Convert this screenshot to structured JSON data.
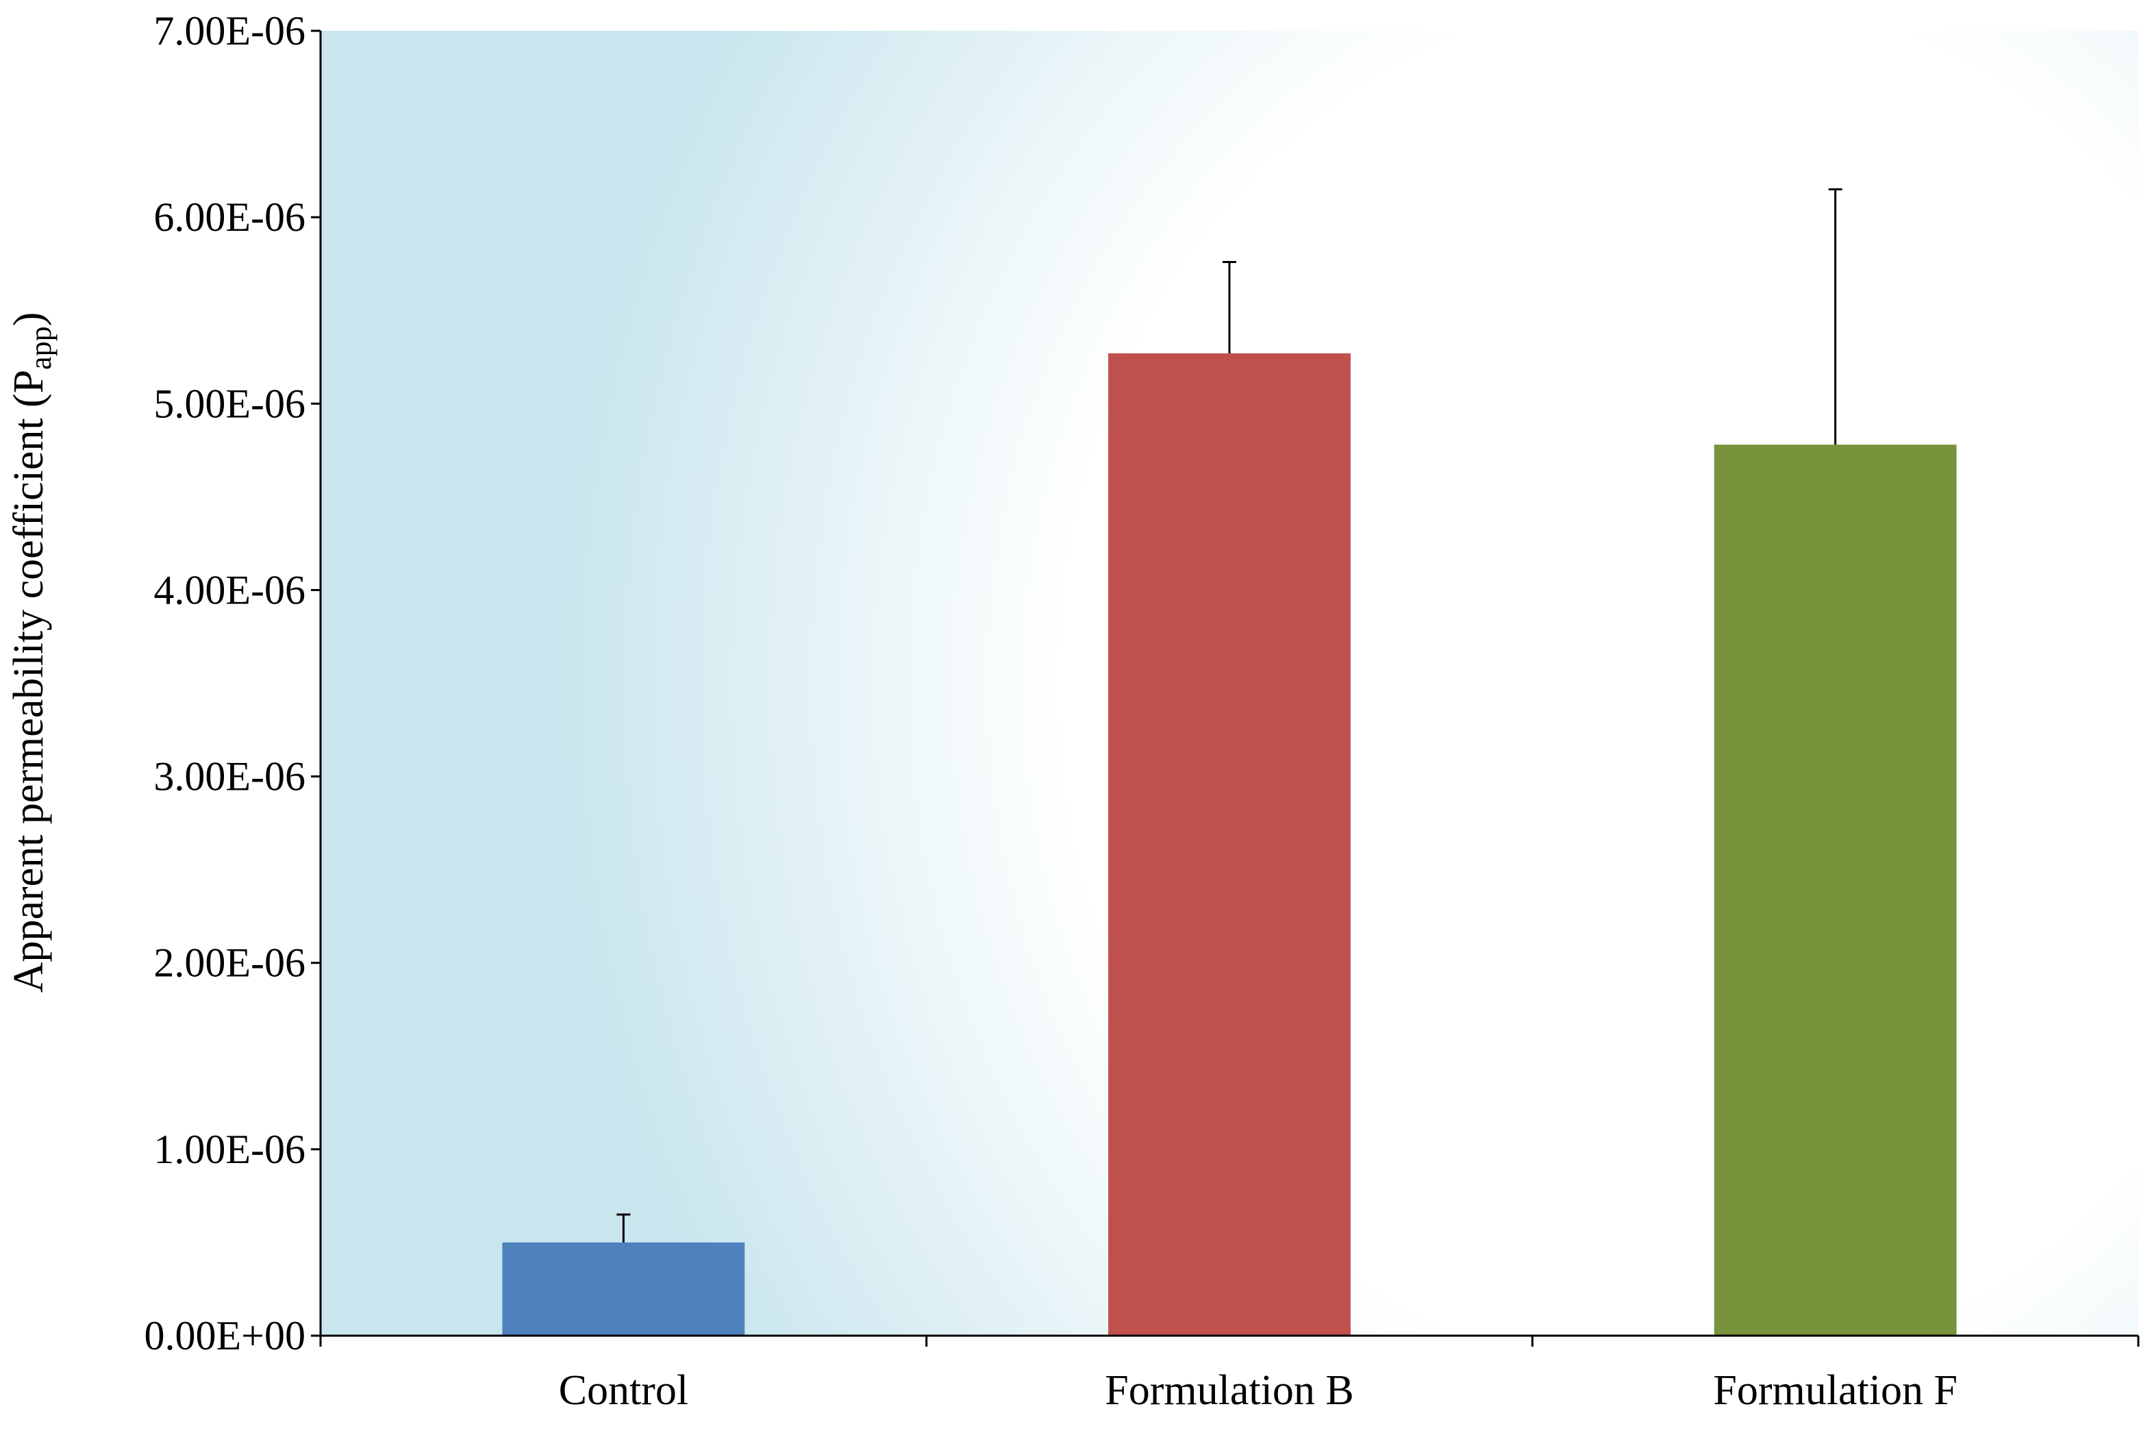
{
  "chart_data": {
    "type": "bar",
    "title": "",
    "xlabel": "",
    "ylabel": "Apparent  permeability  coefficient  (P",
    "ylabel_sub": "app",
    "ylabel_close": ")",
    "categories": [
      "Control",
      "Formulation B",
      "Formulation F"
    ],
    "values": [
      5e-07,
      5.27e-06,
      4.78e-06
    ],
    "errors": [
      1.5e-07,
      4.9e-07,
      1.37e-06
    ],
    "colors": [
      "#4f81bd",
      "#c0504d",
      "#77933c"
    ],
    "ylim": [
      0,
      7e-06
    ],
    "yticks": [
      0,
      1e-06,
      2e-06,
      3e-06,
      4e-06,
      5e-06,
      6e-06,
      7e-06
    ],
    "ytick_labels": [
      "0.00E+00",
      "1.00E-06",
      "2.00E-06",
      "3.00E-06",
      "4.00E-06",
      "5.00E-06",
      "6.00E-06",
      "7.00E-06"
    ],
    "grid": false,
    "legend": "none",
    "background": [
      "#c9e6ee",
      "#ffffff"
    ]
  }
}
